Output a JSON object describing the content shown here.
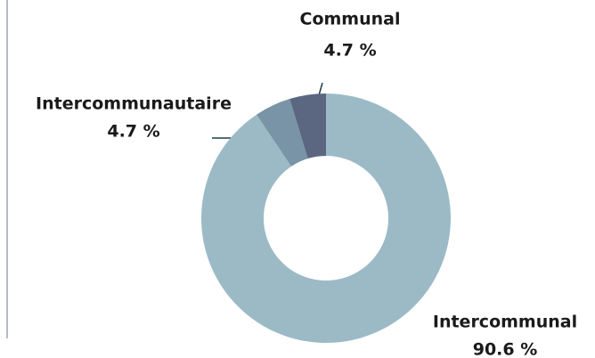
{
  "chart_data": {
    "type": "donut",
    "categories": [
      "Intercommunal",
      "Intercommunautaire",
      "Communal"
    ],
    "values": [
      90.6,
      4.7,
      4.7
    ],
    "value_labels": [
      "90.6 %",
      "4.7 %",
      "4.7 %"
    ],
    "colors": [
      "#9bbac6",
      "#7894a6",
      "#5b6781"
    ]
  }
}
